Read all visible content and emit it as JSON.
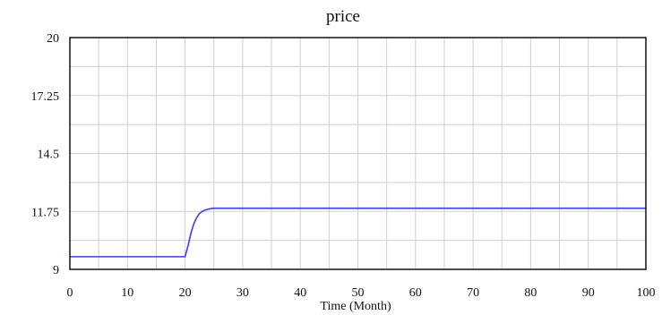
{
  "chart_data": {
    "type": "line",
    "title": "price",
    "xlabel": "Time (Month)",
    "ylabel": "",
    "xlim": [
      0,
      100
    ],
    "ylim": [
      9,
      20
    ],
    "x_ticks": [
      0,
      10,
      20,
      30,
      40,
      50,
      60,
      70,
      80,
      90,
      100
    ],
    "y_ticks": [
      9,
      11.75,
      14.5,
      17.25,
      20
    ],
    "y_tick_labels": [
      "9",
      "11.75",
      "14.5",
      "17.25",
      "20"
    ],
    "grid": true,
    "series": [
      {
        "name": "",
        "color": "#3b3bff",
        "x": [
          0,
          5,
          10,
          15,
          20,
          20.5,
          21,
          21.5,
          22,
          22.5,
          23,
          23.5,
          24,
          24.5,
          25,
          30,
          40,
          50,
          60,
          70,
          80,
          90,
          100
        ],
        "y": [
          9.6,
          9.6,
          9.6,
          9.6,
          9.6,
          10.1,
          10.7,
          11.15,
          11.45,
          11.65,
          11.75,
          11.82,
          11.86,
          11.88,
          11.9,
          11.9,
          11.9,
          11.9,
          11.9,
          11.9,
          11.9,
          11.9,
          11.9
        ]
      }
    ],
    "colors": {
      "line": "#3b3bff",
      "grid": "#cfcfcf",
      "frame": "#111111"
    }
  }
}
